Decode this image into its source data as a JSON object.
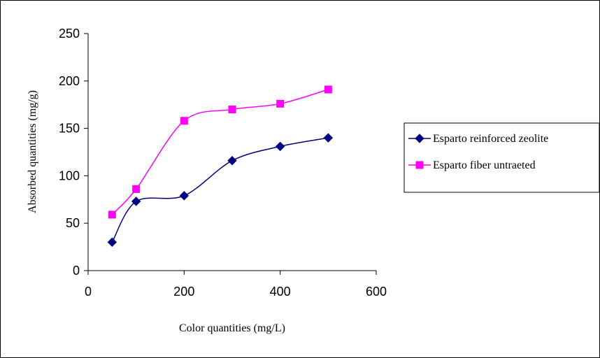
{
  "chart_data": {
    "type": "line",
    "title": "",
    "xlabel": "Color quantities (mg/L)",
    "ylabel": "Absorbed quantities (mg/g)",
    "xlim": [
      0,
      600
    ],
    "ylim": [
      0,
      250
    ],
    "xticks": [
      0,
      200,
      400,
      600
    ],
    "yticks": [
      0,
      50,
      100,
      150,
      200,
      250
    ],
    "grid": false,
    "legend_position": "right",
    "x": [
      50,
      100,
      200,
      300,
      400,
      500
    ],
    "series": [
      {
        "name": "Esparto reinforced zeolite",
        "values": [
          30,
          73,
          79,
          116,
          131,
          140
        ],
        "color": "#000080",
        "marker": "diamond"
      },
      {
        "name": "Esparto fiber untraeted",
        "values": [
          59,
          86,
          158,
          170,
          176,
          191
        ],
        "color": "#ff00ff",
        "marker": "square"
      }
    ]
  }
}
